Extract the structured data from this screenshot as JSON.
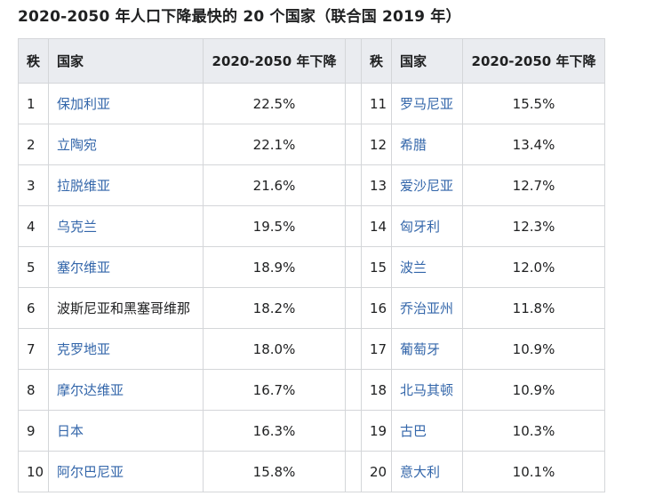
{
  "title": "2020-2050 年人口下降最快的 20 个国家（联合国 2019 年）",
  "headers": {
    "rank": "秩",
    "country": "国家",
    "decline": "2020-2050 年下降"
  },
  "rows_left": [
    {
      "rank": "1",
      "country": "保加利亚",
      "decline": "22.5%",
      "link": true
    },
    {
      "rank": "2",
      "country": "立陶宛",
      "decline": "22.1%",
      "link": true
    },
    {
      "rank": "3",
      "country": "拉脱维亚",
      "decline": "21.6%",
      "link": true
    },
    {
      "rank": "4",
      "country": "乌克兰",
      "decline": "19.5%",
      "link": true
    },
    {
      "rank": "5",
      "country": "塞尔维亚",
      "decline": "18.9%",
      "link": true
    },
    {
      "rank": "6",
      "country": "波斯尼亚和黑塞哥维那",
      "decline": "18.2%",
      "link": false
    },
    {
      "rank": "7",
      "country": "克罗地亚",
      "decline": "18.0%",
      "link": true
    },
    {
      "rank": "8",
      "country": "摩尔达维亚",
      "decline": "16.7%",
      "link": true
    },
    {
      "rank": "9",
      "country": "日本",
      "decline": "16.3%",
      "link": true
    },
    {
      "rank": "10",
      "country": "阿尔巴尼亚",
      "decline": "15.8%",
      "link": true
    }
  ],
  "rows_right": [
    {
      "rank": "11",
      "country": "罗马尼亚",
      "decline": "15.5%",
      "link": true
    },
    {
      "rank": "12",
      "country": "希腊",
      "decline": "13.4%",
      "link": true
    },
    {
      "rank": "13",
      "country": "爱沙尼亚",
      "decline": "12.7%",
      "link": true
    },
    {
      "rank": "14",
      "country": "匈牙利",
      "decline": "12.3%",
      "link": true
    },
    {
      "rank": "15",
      "country": "波兰",
      "decline": "12.0%",
      "link": true
    },
    {
      "rank": "16",
      "country": "乔治亚州",
      "decline": "11.8%",
      "link": true
    },
    {
      "rank": "17",
      "country": "葡萄牙",
      "decline": "10.9%",
      "link": true
    },
    {
      "rank": "18",
      "country": "北马其顿",
      "decline": "10.9%",
      "link": true
    },
    {
      "rank": "19",
      "country": "古巴",
      "decline": "10.3%",
      "link": true
    },
    {
      "rank": "20",
      "country": "意大利",
      "decline": "10.1%",
      "link": true
    }
  ],
  "colors": {
    "link": "#3366aa",
    "header_bg": "#eaecf0",
    "border": "#d4d6d9",
    "text": "#202122"
  }
}
